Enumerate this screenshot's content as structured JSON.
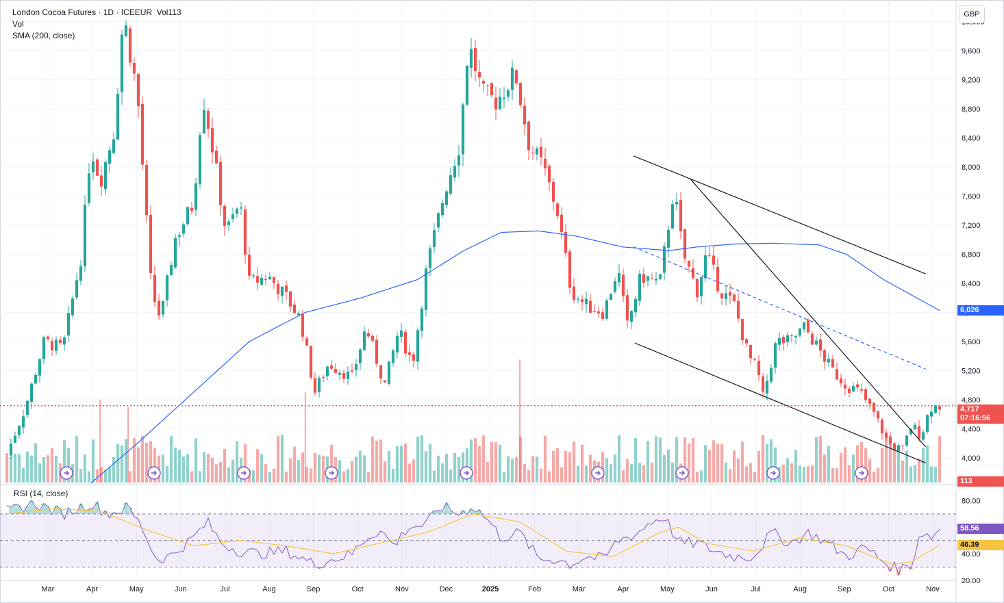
{
  "legend": {
    "title": "London Cocoa Futures · 1D · ICEEUR",
    "vol_label": "Vol113",
    "vol": "Vol",
    "sma": "SMA (200, close)"
  },
  "currency": "GBP",
  "colors": {
    "up": "#26a69a",
    "down": "#ef5350",
    "sma": "#2962ff",
    "rsi": "#7e57c2",
    "rsi_ma": "#f5c542",
    "last_price": "#ef5350",
    "sma_tag": "#2962ff"
  },
  "tags": {
    "last_price": "4,717",
    "countdown": "07:16:56",
    "sma_value": "6,026",
    "volume": "113",
    "rsi_value": "58.56",
    "rsi_ma_value": "46.39"
  },
  "chart_data": {
    "type": "candlestick",
    "price_axis": {
      "ticks": [
        "10,000",
        "9,600",
        "9,200",
        "8,800",
        "8,400",
        "8,000",
        "7,600",
        "7,200",
        "6,800",
        "6,400",
        "6,000",
        "5,600",
        "5,200",
        "4,800",
        "4,400",
        "4,000"
      ],
      "range": [
        3660,
        10220
      ]
    },
    "x_axis": {
      "ticks": [
        "Mar",
        "Apr",
        "May",
        "Jun",
        "Jul",
        "Aug",
        "Sep",
        "Oct",
        "Nov",
        "Dec",
        "2025",
        "Feb",
        "Mar",
        "Apr",
        "May",
        "Jun",
        "Jul",
        "Aug",
        "Sep",
        "Oct",
        "Nov"
      ]
    },
    "close_path": [
      [
        0,
        4050
      ],
      [
        0.02,
        4700
      ],
      [
        0.04,
        5600
      ],
      [
        0.06,
        5500
      ],
      [
        0.08,
        6800
      ],
      [
        0.09,
        8300
      ],
      [
        0.1,
        7800
      ],
      [
        0.115,
        8500
      ],
      [
        0.125,
        10100
      ],
      [
        0.14,
        9000
      ],
      [
        0.155,
        6300
      ],
      [
        0.165,
        5900
      ],
      [
        0.18,
        7000
      ],
      [
        0.2,
        7500
      ],
      [
        0.21,
        9000
      ],
      [
        0.22,
        8300
      ],
      [
        0.235,
        7100
      ],
      [
        0.25,
        7500
      ],
      [
        0.26,
        6400
      ],
      [
        0.28,
        6500
      ],
      [
        0.3,
        6200
      ],
      [
        0.315,
        5900
      ],
      [
        0.33,
        4900
      ],
      [
        0.345,
        5300
      ],
      [
        0.37,
        5100
      ],
      [
        0.385,
        5800
      ],
      [
        0.405,
        5000
      ],
      [
        0.42,
        5750
      ],
      [
        0.435,
        5300
      ],
      [
        0.45,
        6600
      ],
      [
        0.47,
        7700
      ],
      [
        0.485,
        8300
      ],
      [
        0.495,
        9700
      ],
      [
        0.51,
        9000
      ],
      [
        0.525,
        8900
      ],
      [
        0.545,
        9300
      ],
      [
        0.56,
        8300
      ],
      [
        0.575,
        8000
      ],
      [
        0.59,
        7400
      ],
      [
        0.605,
        6300
      ],
      [
        0.62,
        6100
      ],
      [
        0.64,
        6000
      ],
      [
        0.655,
        6600
      ],
      [
        0.665,
        5800
      ],
      [
        0.68,
        6500
      ],
      [
        0.7,
        6400
      ],
      [
        0.715,
        7700
      ],
      [
        0.725,
        6800
      ],
      [
        0.74,
        6300
      ],
      [
        0.75,
        6800
      ],
      [
        0.765,
        6300
      ],
      [
        0.78,
        6100
      ],
      [
        0.795,
        5400
      ],
      [
        0.805,
        5200
      ],
      [
        0.81,
        4800
      ],
      [
        0.825,
        5600
      ],
      [
        0.84,
        5600
      ],
      [
        0.855,
        5800
      ],
      [
        0.87,
        5500
      ],
      [
        0.885,
        5200
      ],
      [
        0.9,
        5000
      ],
      [
        0.915,
        4900
      ],
      [
        0.93,
        4600
      ],
      [
        0.945,
        4200
      ],
      [
        0.96,
        4100
      ],
      [
        0.97,
        4450
      ],
      [
        0.98,
        4300
      ],
      [
        0.99,
        4700
      ],
      [
        1,
        4717
      ]
    ],
    "sma_200": [
      [
        0.09,
        3650
      ],
      [
        0.14,
        4200
      ],
      [
        0.2,
        4900
      ],
      [
        0.26,
        5600
      ],
      [
        0.32,
        6000
      ],
      [
        0.38,
        6200
      ],
      [
        0.44,
        6450
      ],
      [
        0.49,
        6850
      ],
      [
        0.53,
        7100
      ],
      [
        0.57,
        7120
      ],
      [
        0.61,
        7050
      ],
      [
        0.66,
        6900
      ],
      [
        0.71,
        6850
      ],
      [
        0.74,
        6900
      ],
      [
        0.78,
        6940
      ],
      [
        0.82,
        6950
      ],
      [
        0.87,
        6930
      ],
      [
        0.9,
        6800
      ],
      [
        0.94,
        6450
      ],
      [
        1,
        6026
      ]
    ],
    "volume": {
      "label": "Vol",
      "last": 113,
      "spikes": [
        [
          0.1,
          4800
        ],
        [
          0.13,
          4700
        ],
        [
          0.32,
          4900
        ],
        [
          0.55,
          5350
        ]
      ]
    },
    "rsi": {
      "label": "RSI (14, close)",
      "levels": [
        70,
        50,
        30
      ],
      "ticks": [
        "80.00",
        "40.00",
        "20.00"
      ],
      "range": [
        20,
        90
      ],
      "last": 58.56,
      "ma_last": 46.39,
      "path": [
        [
          0,
          72
        ],
        [
          0.03,
          78
        ],
        [
          0.06,
          70
        ],
        [
          0.09,
          78
        ],
        [
          0.11,
          70
        ],
        [
          0.13,
          75
        ],
        [
          0.145,
          60
        ],
        [
          0.16,
          36
        ],
        [
          0.175,
          38
        ],
        [
          0.2,
          52
        ],
        [
          0.215,
          64
        ],
        [
          0.23,
          48
        ],
        [
          0.25,
          42
        ],
        [
          0.27,
          40
        ],
        [
          0.3,
          42
        ],
        [
          0.33,
          32
        ],
        [
          0.35,
          36
        ],
        [
          0.37,
          40
        ],
        [
          0.385,
          52
        ],
        [
          0.4,
          58
        ],
        [
          0.415,
          46
        ],
        [
          0.43,
          60
        ],
        [
          0.45,
          62
        ],
        [
          0.465,
          76
        ],
        [
          0.485,
          70
        ],
        [
          0.5,
          76
        ],
        [
          0.515,
          66
        ],
        [
          0.53,
          52
        ],
        [
          0.55,
          56
        ],
        [
          0.57,
          36
        ],
        [
          0.59,
          36
        ],
        [
          0.605,
          32
        ],
        [
          0.62,
          38
        ],
        [
          0.64,
          36
        ],
        [
          0.655,
          50
        ],
        [
          0.675,
          55
        ],
        [
          0.69,
          64
        ],
        [
          0.705,
          68
        ],
        [
          0.72,
          48
        ],
        [
          0.74,
          48
        ],
        [
          0.76,
          42
        ],
        [
          0.78,
          38
        ],
        [
          0.8,
          38
        ],
        [
          0.82,
          56
        ],
        [
          0.84,
          48
        ],
        [
          0.86,
          56
        ],
        [
          0.88,
          48
        ],
        [
          0.9,
          38
        ],
        [
          0.92,
          45
        ],
        [
          0.94,
          34
        ],
        [
          0.955,
          28
        ],
        [
          0.97,
          32
        ],
        [
          0.98,
          58
        ],
        [
          0.99,
          52
        ],
        [
          1,
          58.56
        ]
      ],
      "ma_path": [
        [
          0,
          70
        ],
        [
          0.05,
          74
        ],
        [
          0.1,
          72
        ],
        [
          0.15,
          58
        ],
        [
          0.2,
          46
        ],
        [
          0.25,
          50
        ],
        [
          0.3,
          46
        ],
        [
          0.35,
          40
        ],
        [
          0.4,
          48
        ],
        [
          0.45,
          56
        ],
        [
          0.5,
          70
        ],
        [
          0.55,
          64
        ],
        [
          0.6,
          42
        ],
        [
          0.65,
          38
        ],
        [
          0.7,
          56
        ],
        [
          0.72,
          60
        ],
        [
          0.75,
          48
        ],
        [
          0.8,
          42
        ],
        [
          0.85,
          52
        ],
        [
          0.9,
          46
        ],
        [
          0.95,
          32
        ],
        [
          0.97,
          34
        ],
        [
          1,
          46.39
        ]
      ]
    }
  }
}
